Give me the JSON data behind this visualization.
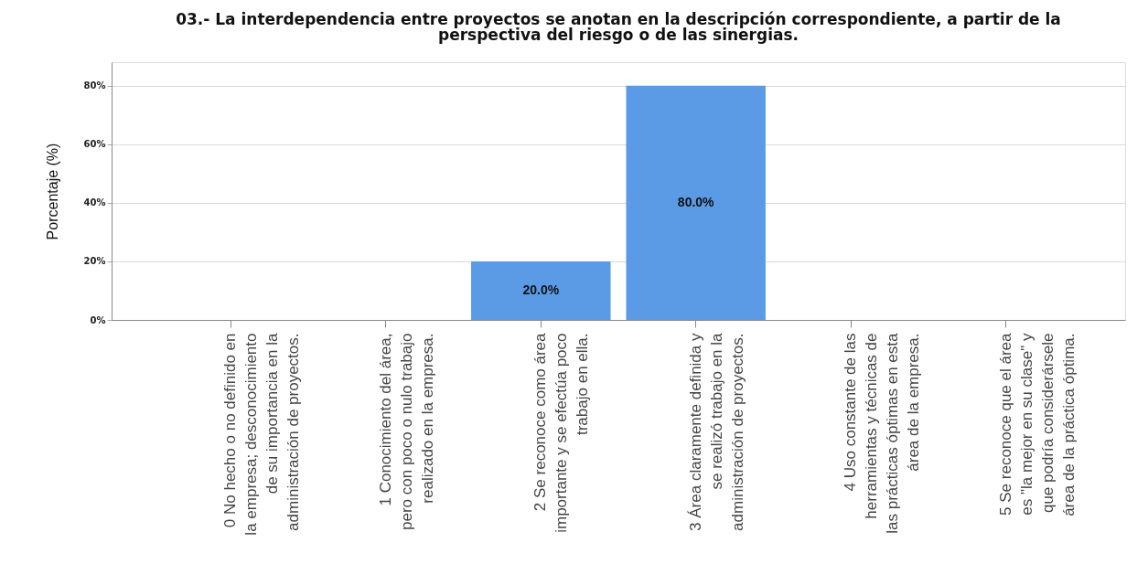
{
  "chart_data": {
    "type": "bar",
    "title": "03.- La interdependencia entre proyectos se anotan en la descripción correspondiente, a partir de la\nperspectiva del riesgo o de las sinergias.",
    "categories": [
      "0 No hecho o no definido en\nla empresa; desconocimiento\nde su importancia en la\nadministración de proyectos.",
      "1 Conocimiento del área,\npero con poco o nulo trabajo\nrealizado en la empresa.",
      "2 Se reconoce como área\nimportante y se efectúa poco\ntrabajo en ella.",
      "3 Área claramente definida y\nse realizó trabajo en la\nadministración de proyectos.",
      "4 Uso constante de las\nherramientas y técnicas de\nlas prácticas óptimas en esta\nárea de la empresa.",
      "5 Se reconoce que el área\nes \"la mejor en su clase\" y\nque podría considerársele\nárea de la práctica óptima."
    ],
    "values": [
      null,
      null,
      20,
      80,
      null,
      null
    ],
    "value_labels": [
      null,
      null,
      "20.0%",
      "80.0%",
      null,
      null
    ],
    "color": "#5b9be6",
    "ylabel": "Porcentaje (%)",
    "ylim": [
      0,
      88
    ],
    "yticks": [
      {
        "value": 0,
        "label": "0%"
      },
      {
        "value": 20,
        "label": "20%"
      },
      {
        "value": 40,
        "label": "40%"
      },
      {
        "value": 60,
        "label": "60%"
      },
      {
        "value": 80,
        "label": "80%"
      }
    ],
    "grid": "y"
  }
}
